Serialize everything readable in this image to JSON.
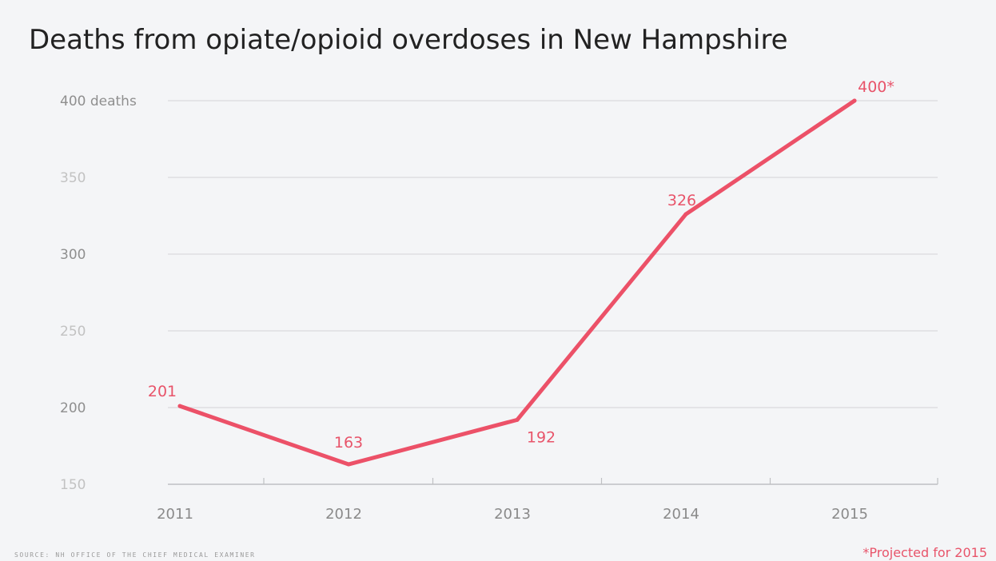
{
  "chart_data": {
    "type": "line",
    "title": "Deaths from opiate/opioid overdoses in New Hampshire",
    "categories": [
      "2011",
      "2012",
      "2013",
      "2014",
      "2015"
    ],
    "series": [
      {
        "values": [
          201,
          163,
          192,
          326,
          400
        ]
      }
    ],
    "data_labels": [
      "201",
      "163",
      "192",
      "326",
      "400*"
    ],
    "y_ticks": [
      {
        "value": 400,
        "label": "400 deaths"
      },
      {
        "value": 350,
        "label": "350"
      },
      {
        "value": 300,
        "label": "300"
      },
      {
        "value": 250,
        "label": "250"
      },
      {
        "value": 200,
        "label": "200"
      },
      {
        "value": 150,
        "label": "150"
      }
    ],
    "ylim": [
      150,
      400
    ],
    "xlabel": "",
    "ylabel": "",
    "grid": true,
    "source": "SOURCE: NH OFFICE OF THE CHIEF MEDICAL EXAMINER",
    "footnote": "*Projected for 2015",
    "colors": {
      "line": "#ec5168",
      "label": "#e8546a",
      "grid": "#d9dadd",
      "grid_strong": "#bfc0c3",
      "ytick_dark": "#8f8f8f",
      "ytick_light": "#c2c2c2",
      "background": "#f4f5f7"
    }
  }
}
